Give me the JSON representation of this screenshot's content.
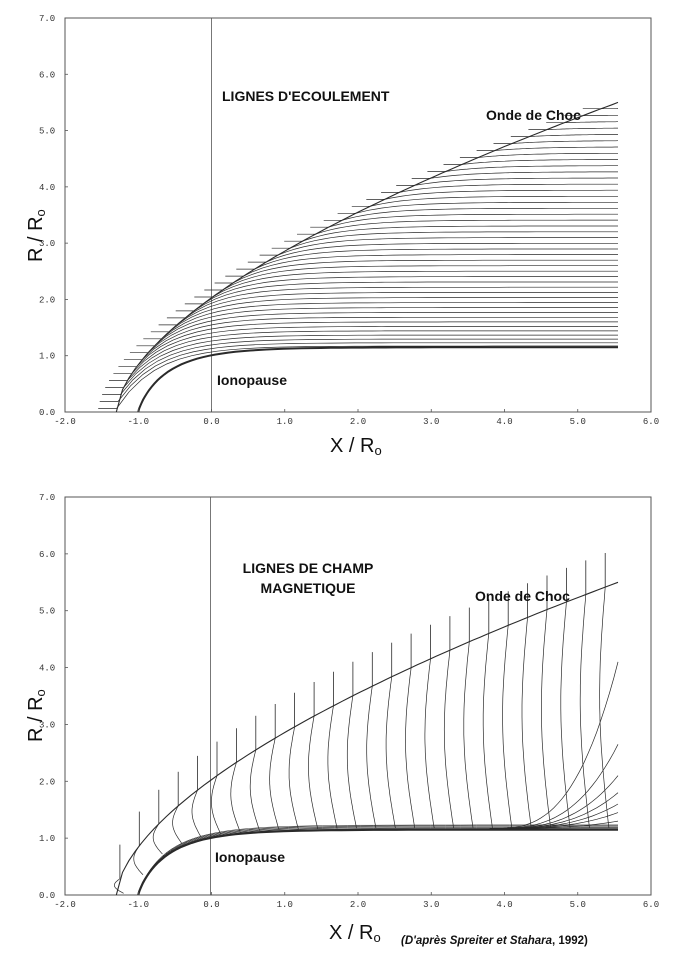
{
  "panels": [
    {
      "id": "top",
      "title": "LIGNES D'ECOULEMENT",
      "shock_label": "Onde de Choc",
      "ionopause_label": "Ionopause",
      "x_label": "X / R",
      "x_sub": "o",
      "y_label": "R / R",
      "y_sub": "o",
      "x_ticks": [
        "-2.0",
        "-1.0",
        "0.0",
        "1.0",
        "2.0",
        "3.0",
        "4.0",
        "5.0",
        "6.0"
      ],
      "y_ticks": [
        "0.0",
        "1.0",
        "2.0",
        "3.0",
        "4.0",
        "5.0",
        "6.0",
        "7.0"
      ],
      "line_type": "flow"
    },
    {
      "id": "bottom",
      "title_line1": "LIGNES DE CHAMP",
      "title_line2": "MAGNETIQUE",
      "shock_label": "Onde de Choc",
      "ionopause_label": "Ionopause",
      "x_label": "X / R",
      "x_sub": "o",
      "y_label": "R / R",
      "y_sub": "o",
      "x_ticks": [
        "-2.0",
        "-1.0",
        "0.0",
        "1.0",
        "2.0",
        "3.0",
        "4.0",
        "5.0",
        "6.0"
      ],
      "y_ticks": [
        "0.0",
        "1.0",
        "2.0",
        "3.0",
        "4.0",
        "5.0",
        "6.0",
        "7.0"
      ],
      "line_type": "field"
    }
  ],
  "credit": {
    "prefix": "(D'après ",
    "names": "Spreiter et Stahara",
    "suffix": ", 1992)"
  },
  "model": {
    "x_range": [
      -2.0,
      6.0
    ],
    "y_range": [
      0.0,
      7.0
    ],
    "shock_nose_x": -1.3,
    "shock_end": [
      5.55,
      5.5
    ],
    "ionopause_nose_x": -1.0,
    "ionopause_radius": 1.15,
    "x_end": 5.55
  },
  "colors": {
    "ink": "#2a2a2a",
    "axis": "#555555",
    "background": "#ffffff"
  }
}
